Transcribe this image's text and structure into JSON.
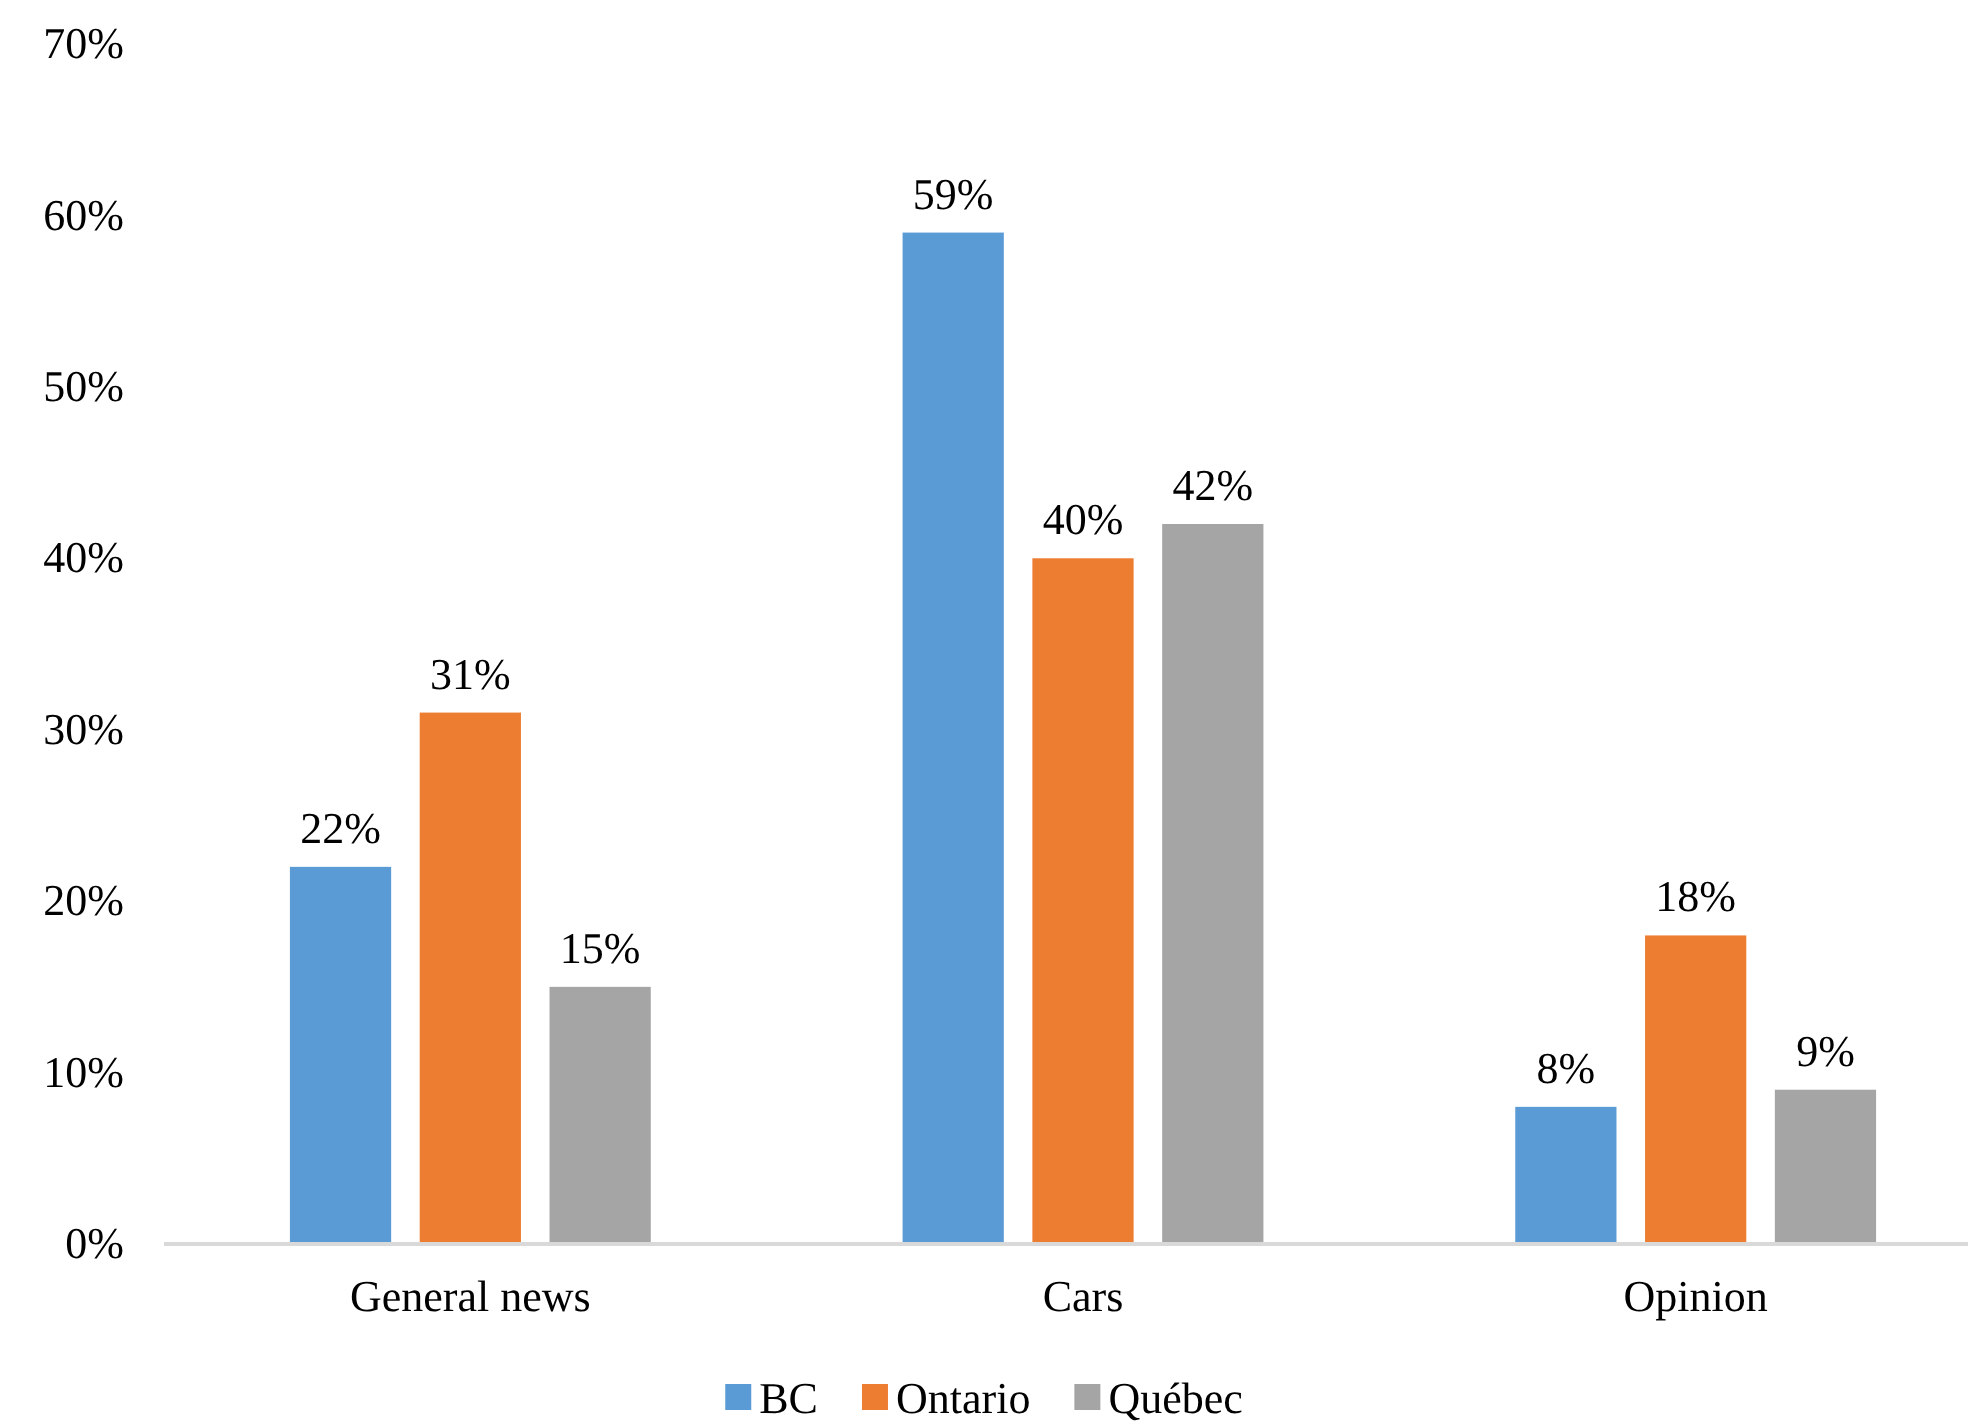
{
  "chart_data": {
    "type": "bar",
    "categories": [
      "General news",
      "Cars",
      "Opinion"
    ],
    "series": [
      {
        "name": "BC",
        "color": "#5b9bd5",
        "values": [
          22,
          59,
          8
        ],
        "value_labels": [
          "22%",
          "59%",
          "8%"
        ]
      },
      {
        "name": "Ontario",
        "color": "#ed7d31",
        "values": [
          31,
          40,
          18
        ],
        "value_labels": [
          "31%",
          "40%",
          "18%"
        ]
      },
      {
        "name": "Québec",
        "color": "#a5a5a5",
        "values": [
          15,
          42,
          9
        ],
        "value_labels": [
          "15%",
          "42%",
          "9%"
        ]
      }
    ],
    "ylim": [
      0,
      70
    ],
    "yticks": [
      {
        "value": 0,
        "label": "0%"
      },
      {
        "value": 10,
        "label": "10%"
      },
      {
        "value": 20,
        "label": "20%"
      },
      {
        "value": 30,
        "label": "30%"
      },
      {
        "value": 40,
        "label": "40%"
      },
      {
        "value": 50,
        "label": "50%"
      },
      {
        "value": 60,
        "label": "60%"
      },
      {
        "value": 70,
        "label": "70%"
      }
    ],
    "legend": "bottom"
  }
}
